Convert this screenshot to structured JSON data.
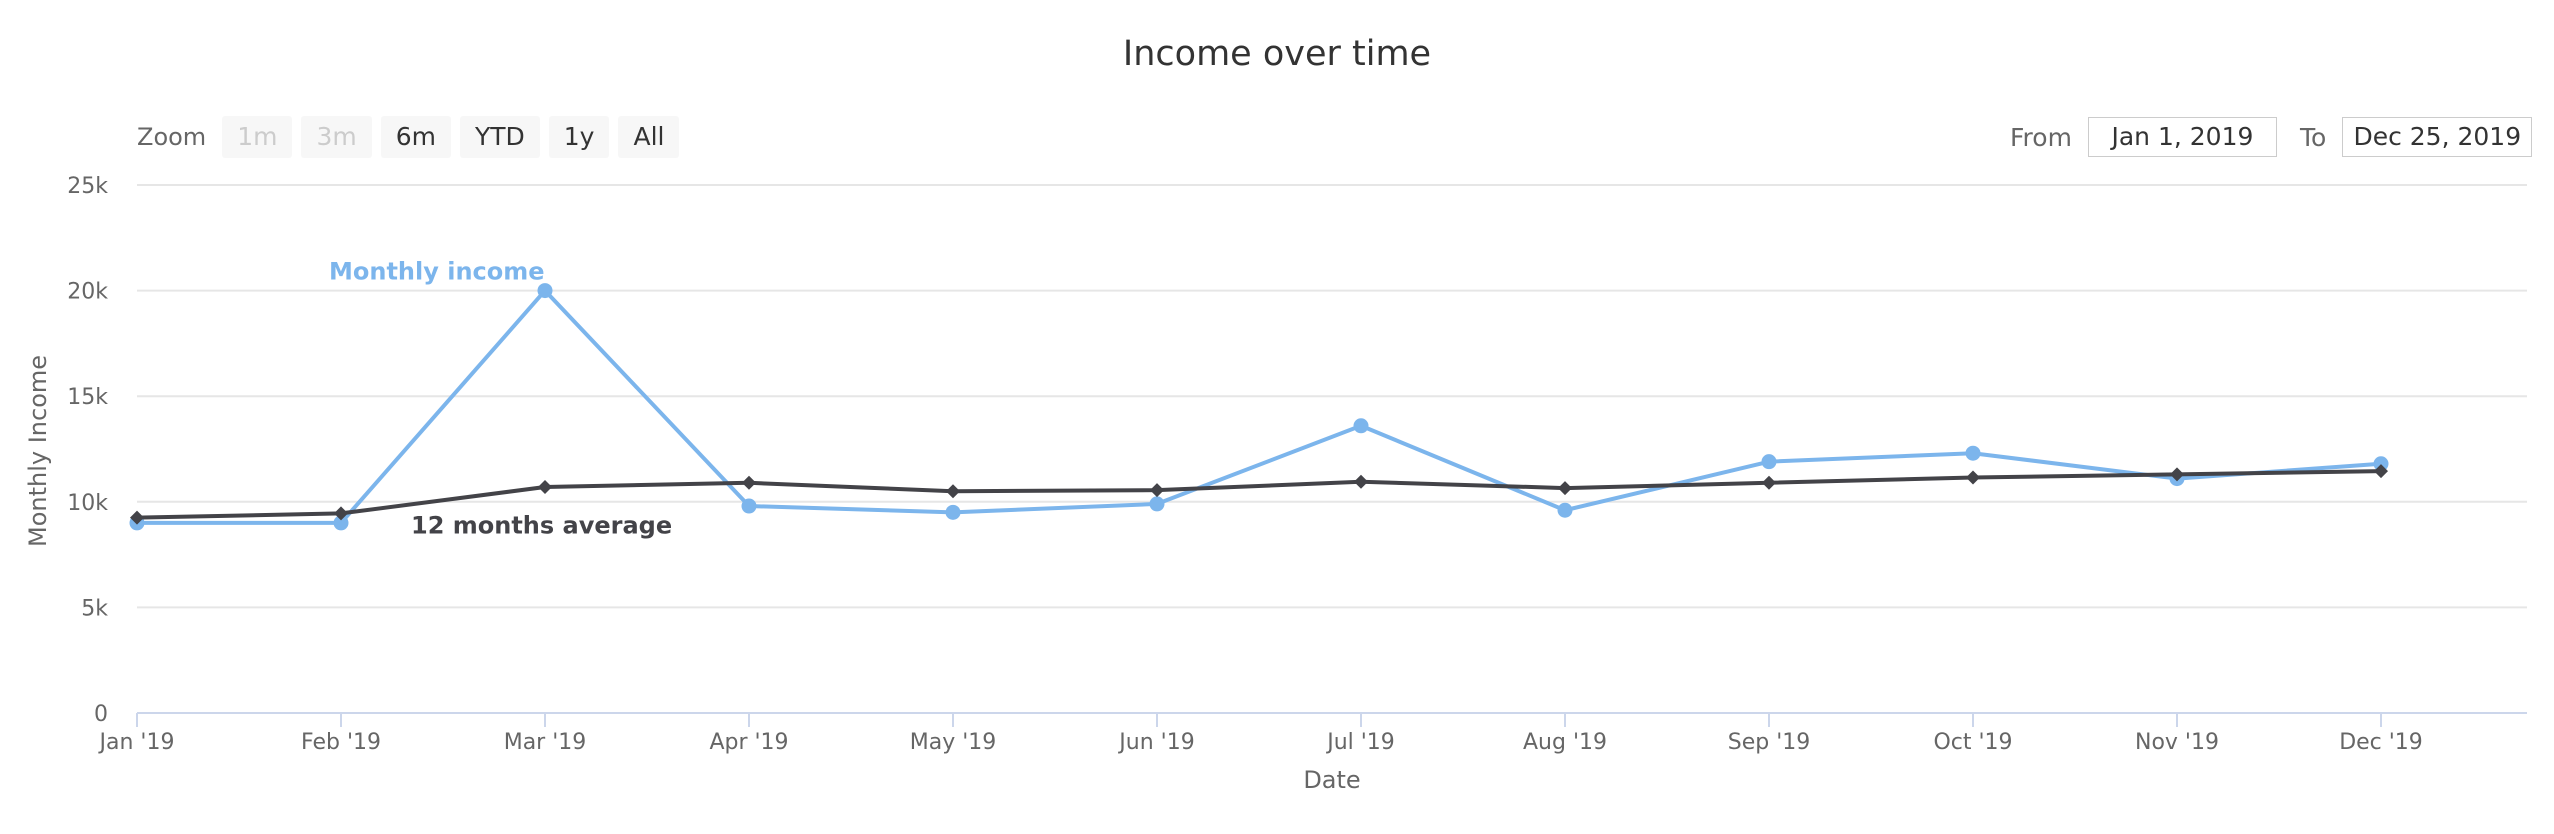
{
  "chart_data": {
    "type": "line",
    "title": "Income over time",
    "xlabel": "Date",
    "ylabel": "Monthly Income",
    "ylim": [
      0,
      25000
    ],
    "yticks": [
      "0",
      "5k",
      "10k",
      "15k",
      "20k",
      "25k"
    ],
    "categories": [
      "Jan '19",
      "Feb '19",
      "Mar '19",
      "Apr '19",
      "May '19",
      "Jun '19",
      "Jul '19",
      "Aug '19",
      "Sep '19",
      "Oct '19",
      "Nov '19",
      "Dec '19"
    ],
    "grid": true,
    "legend": "none",
    "series": [
      {
        "name": "Monthly income",
        "color": "#7cb5ec",
        "marker": "circle",
        "values": [
          9000,
          9000,
          20000,
          9800,
          9500,
          9900,
          13600,
          9600,
          11900,
          12300,
          11100,
          11800
        ]
      },
      {
        "name": "12 months average",
        "color": "#434348",
        "marker": "diamond",
        "values": [
          9250,
          9450,
          10700,
          10900,
          10500,
          10550,
          10950,
          10650,
          10900,
          11150,
          11300,
          11450
        ]
      }
    ]
  },
  "range_selector": {
    "zoom_label": "Zoom",
    "buttons": [
      {
        "label": "1m",
        "disabled": true
      },
      {
        "label": "3m",
        "disabled": true
      },
      {
        "label": "6m",
        "disabled": false
      },
      {
        "label": "YTD",
        "disabled": false
      },
      {
        "label": "1y",
        "disabled": false
      },
      {
        "label": "All",
        "disabled": false
      }
    ],
    "from_label": "From",
    "from_value": "Jan 1, 2019",
    "to_label": "To",
    "to_value": "Dec 25, 2019"
  }
}
